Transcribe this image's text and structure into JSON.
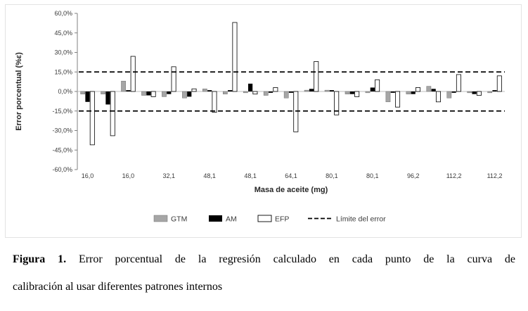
{
  "figure": {
    "caption_prefix": "Figura 1.",
    "caption_line1": "Error porcentual de la regresión calculado en cada punto de la curva de",
    "caption_line2": "calibración al usar diferentes patrones internos"
  },
  "chart_data": {
    "type": "bar",
    "title": "",
    "xlabel": "Masa de aceite (mg)",
    "ylabel": "Error porcentual (%ε)",
    "ylim": [
      -60,
      60
    ],
    "grid": false,
    "legend_position": "bottom",
    "y_tick_values": [
      60,
      45,
      30,
      15,
      0,
      -15,
      -30,
      -45,
      -60
    ],
    "y_tick_labels": [
      "60,0%",
      "45,0%",
      "30,0%",
      "15,0%",
      "0,0%",
      "-15,0%",
      "-30,0%",
      "-45,0%",
      "-60,0%"
    ],
    "x_tick_labels": [
      "16,0",
      "16,0",
      "32,1",
      "48,1",
      "48,1",
      "64,1",
      "80,1",
      "80,1",
      "96,2",
      "112,2",
      "112,2"
    ],
    "categories": [
      16.0,
      16.0,
      16.0,
      32.1,
      32.1,
      32.1,
      48.1,
      48.1,
      48.1,
      64.1,
      64.1,
      64.1,
      80.1,
      80.1,
      80.1,
      96.2,
      96.2,
      96.2,
      112.2,
      112.2,
      112.2
    ],
    "series": [
      {
        "name": "GTM",
        "color": "#a6a6a6",
        "values": [
          -2,
          -2,
          8,
          -3,
          -4,
          -5,
          2,
          -2,
          -1,
          -3,
          -5,
          1,
          1,
          -2,
          -1,
          -8,
          -2,
          4,
          -5,
          -1,
          -1
        ]
      },
      {
        "name": "AM",
        "color": "#000000",
        "values": [
          -8,
          -10,
          1,
          -3,
          -2,
          -4,
          1,
          1,
          6,
          -1,
          -1,
          2,
          1,
          -2,
          3,
          -1,
          -2,
          2,
          -1,
          -2,
          1
        ]
      },
      {
        "name": "EFP",
        "color": "#ffffff",
        "values": [
          -41,
          -34,
          27,
          -4,
          19,
          2,
          -16,
          53,
          -2,
          3,
          -31,
          23,
          -18,
          -4,
          9,
          -12,
          3,
          -8,
          13,
          -3,
          12
        ]
      }
    ],
    "limit_lines": {
      "label": "Límite del error",
      "values": [
        15,
        -15
      ],
      "color": "#000000"
    }
  }
}
